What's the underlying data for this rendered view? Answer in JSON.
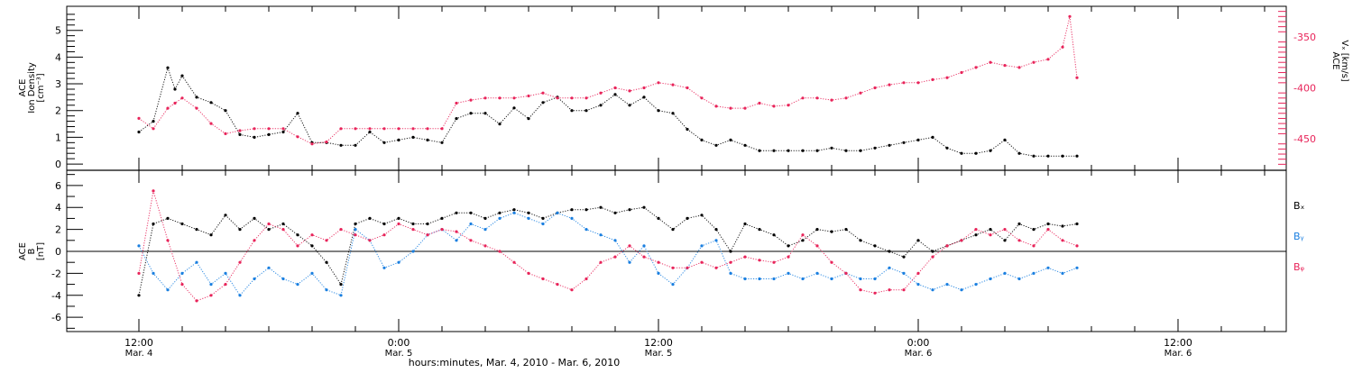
{
  "colors": {
    "black": "#000000",
    "red": "#e8245a",
    "blue": "#1a7fe0"
  },
  "chart_data": [
    {
      "type": "scatter",
      "panel": "top",
      "ylabel_left": [
        "ACE",
        "Ion Density",
        "[cm⁻³]"
      ],
      "ylabel_right": [
        "ACE",
        "Vₓ [km/s]"
      ],
      "ylim_left": [
        -0.2,
        5.9
      ],
      "ylim_right": [
        -480,
        -320
      ],
      "right_axis_reversed": true,
      "yticks_left": [
        0,
        1,
        2,
        3,
        4,
        5
      ],
      "yticks_right": [
        -350,
        -400,
        -450
      ],
      "series": [
        {
          "color": "black",
          "axis": "left",
          "x": [
            0,
            2,
            4,
            5,
            6,
            8,
            10,
            12,
            14,
            16,
            18,
            20,
            22,
            24,
            26,
            28,
            30,
            32,
            34,
            36,
            38,
            40,
            42,
            44,
            46,
            48,
            50,
            52,
            54,
            56,
            58,
            60,
            62,
            64,
            66,
            68,
            70,
            72,
            74,
            76,
            78,
            80,
            82,
            84,
            86,
            88,
            90,
            92,
            94,
            96,
            98,
            100,
            102,
            104,
            106,
            108,
            110,
            112,
            114,
            116,
            118,
            120,
            122,
            124,
            126,
            128,
            130
          ],
          "y": [
            1.2,
            1.6,
            3.6,
            2.8,
            3.3,
            2.5,
            2.3,
            2.0,
            1.1,
            1.0,
            1.1,
            1.2,
            1.9,
            0.8,
            0.8,
            0.7,
            0.7,
            1.2,
            0.8,
            0.9,
            1.0,
            0.9,
            0.8,
            1.7,
            1.9,
            1.9,
            1.5,
            2.1,
            1.7,
            2.3,
            2.5,
            2.0,
            2.0,
            2.2,
            2.6,
            2.2,
            2.5,
            2.0,
            1.9,
            1.3,
            0.9,
            0.7,
            0.9,
            0.7,
            0.5,
            0.5,
            0.5,
            0.5,
            0.5,
            0.6,
            0.5,
            0.5,
            0.6,
            0.7,
            0.8,
            0.9,
            1.0,
            0.6,
            0.4,
            0.4,
            0.5,
            0.9,
            0.4,
            0.3,
            0.3,
            0.3,
            0.3
          ]
        },
        {
          "color": "red",
          "axis": "right",
          "x": [
            0,
            2,
            4,
            5,
            6,
            8,
            10,
            12,
            14,
            16,
            18,
            20,
            22,
            24,
            26,
            28,
            30,
            32,
            34,
            36,
            38,
            40,
            42,
            44,
            46,
            48,
            50,
            52,
            54,
            56,
            58,
            60,
            62,
            64,
            66,
            68,
            70,
            72,
            74,
            76,
            78,
            80,
            82,
            84,
            86,
            88,
            90,
            92,
            94,
            96,
            98,
            100,
            102,
            104,
            106,
            108,
            110,
            112,
            114,
            116,
            118,
            120,
            122,
            124,
            126,
            128,
            129,
            130
          ],
          "y": [
            -430,
            -440,
            -420,
            -415,
            -410,
            -420,
            -435,
            -445,
            -442,
            -440,
            -440,
            -440,
            -448,
            -455,
            -453,
            -440,
            -440,
            -440,
            -440,
            -440,
            -440,
            -440,
            -440,
            -415,
            -412,
            -410,
            -410,
            -410,
            -408,
            -405,
            -410,
            -410,
            -410,
            -405,
            -400,
            -403,
            -400,
            -395,
            -397,
            -400,
            -410,
            -418,
            -420,
            -420,
            -415,
            -418,
            -417,
            -410,
            -410,
            -412,
            -410,
            -405,
            -400,
            -397,
            -395,
            -395,
            -392,
            -390,
            -385,
            -380,
            -375,
            -378,
            -380,
            -375,
            -372,
            -360,
            -330,
            -390
          ]
        }
      ]
    },
    {
      "type": "scatter",
      "panel": "bottom",
      "ylabel_left": [
        "ACE",
        "B",
        "[nT]"
      ],
      "ylim": [
        -7.3,
        7.3
      ],
      "yticks": [
        -6,
        -4,
        -2,
        0,
        2,
        4,
        6
      ],
      "zero_line": true,
      "legend_position": "right",
      "series": [
        {
          "name": "Bₓ",
          "color": "black",
          "x": [
            0,
            2,
            4,
            6,
            8,
            10,
            12,
            14,
            16,
            18,
            20,
            22,
            24,
            26,
            28,
            30,
            32,
            34,
            36,
            38,
            40,
            42,
            44,
            46,
            48,
            50,
            52,
            54,
            56,
            58,
            60,
            62,
            64,
            66,
            68,
            70,
            72,
            74,
            76,
            78,
            80,
            82,
            84,
            86,
            88,
            90,
            92,
            94,
            96,
            98,
            100,
            102,
            104,
            106,
            108,
            110,
            112,
            114,
            116,
            118,
            120,
            122,
            124,
            126,
            128,
            130
          ],
          "y": [
            -4.0,
            2.5,
            3.0,
            2.5,
            2.0,
            1.5,
            3.3,
            2.0,
            3.0,
            2.0,
            2.5,
            1.5,
            0.5,
            -1.0,
            -3.0,
            2.5,
            3.0,
            2.5,
            3.0,
            2.5,
            2.5,
            3.0,
            3.5,
            3.5,
            3.0,
            3.5,
            3.8,
            3.5,
            3.0,
            3.5,
            3.8,
            3.8,
            4.0,
            3.5,
            3.8,
            4.0,
            3.0,
            2.0,
            3.0,
            3.3,
            2.0,
            0.0,
            2.5,
            2.0,
            1.5,
            0.5,
            1.0,
            2.0,
            1.8,
            2.0,
            1.0,
            0.5,
            0.0,
            -0.5,
            1.0,
            0.0,
            0.5,
            1.0,
            1.5,
            2.0,
            1.0,
            2.5,
            2.0,
            2.5,
            2.3,
            2.5
          ]
        },
        {
          "name": "Bᵧ",
          "color": "blue",
          "x": [
            0,
            2,
            4,
            6,
            8,
            10,
            12,
            14,
            16,
            18,
            20,
            22,
            24,
            26,
            28,
            30,
            32,
            34,
            36,
            38,
            40,
            42,
            44,
            46,
            48,
            50,
            52,
            54,
            56,
            58,
            60,
            62,
            64,
            66,
            68,
            70,
            72,
            74,
            76,
            78,
            80,
            82,
            84,
            86,
            88,
            90,
            92,
            94,
            96,
            98,
            100,
            102,
            104,
            106,
            108,
            110,
            112,
            114,
            116,
            118,
            120,
            122,
            124,
            126,
            128,
            130
          ],
          "y": [
            0.5,
            -2.0,
            -3.5,
            -2.0,
            -1.0,
            -3.0,
            -2.0,
            -4.0,
            -2.5,
            -1.5,
            -2.5,
            -3.0,
            -2.0,
            -3.5,
            -4.0,
            2.0,
            1.0,
            -1.5,
            -1.0,
            0.0,
            1.5,
            2.0,
            1.0,
            2.5,
            2.0,
            3.0,
            3.5,
            3.0,
            2.5,
            3.5,
            3.0,
            2.0,
            1.5,
            1.0,
            -1.0,
            0.5,
            -2.0,
            -3.0,
            -1.5,
            0.5,
            1.0,
            -2.0,
            -2.5,
            -2.5,
            -2.5,
            -2.0,
            -2.5,
            -2.0,
            -2.5,
            -2.0,
            -2.5,
            -2.5,
            -1.5,
            -2.0,
            -3.0,
            -3.5,
            -3.0,
            -3.5,
            -3.0,
            -2.5,
            -2.0,
            -2.5,
            -2.0,
            -1.5,
            -2.0,
            -1.5
          ]
        },
        {
          "name": "Bᵩ",
          "color": "red",
          "x": [
            0,
            2,
            4,
            6,
            8,
            10,
            12,
            14,
            16,
            18,
            20,
            22,
            24,
            26,
            28,
            30,
            32,
            34,
            36,
            38,
            40,
            42,
            44,
            46,
            48,
            50,
            52,
            54,
            56,
            58,
            60,
            62,
            64,
            66,
            68,
            70,
            72,
            74,
            76,
            78,
            80,
            82,
            84,
            86,
            88,
            90,
            92,
            94,
            96,
            98,
            100,
            102,
            104,
            106,
            108,
            110,
            112,
            114,
            116,
            118,
            120,
            122,
            124,
            126,
            128,
            130
          ],
          "y": [
            -2.0,
            5.5,
            1.0,
            -3.0,
            -4.5,
            -4.0,
            -3.0,
            -1.0,
            1.0,
            2.5,
            2.0,
            0.5,
            1.5,
            1.0,
            2.0,
            1.5,
            1.0,
            1.5,
            2.5,
            2.0,
            1.5,
            2.0,
            1.8,
            1.0,
            0.5,
            0.0,
            -1.0,
            -2.0,
            -2.5,
            -3.0,
            -3.5,
            -2.5,
            -1.0,
            -0.5,
            0.5,
            -0.5,
            -1.0,
            -1.5,
            -1.5,
            -1.0,
            -1.5,
            -1.0,
            -0.5,
            -0.8,
            -1.0,
            -0.5,
            1.5,
            0.5,
            -1.0,
            -2.0,
            -3.5,
            -3.8,
            -3.5,
            -3.5,
            -2.0,
            -0.5,
            0.5,
            1.0,
            2.0,
            1.5,
            2.0,
            1.0,
            0.5,
            2.0,
            1.0,
            0.5
          ]
        }
      ]
    }
  ],
  "x_axis": {
    "xlim": [
      -10,
      159
    ],
    "major_ticks": [
      {
        "x": 0,
        "time": "12:00",
        "date": "Mar. 4"
      },
      {
        "x": 36,
        "time": "0:00",
        "date": "Mar. 5"
      },
      {
        "x": 72,
        "time": "12:00",
        "date": "Mar. 5"
      },
      {
        "x": 108,
        "time": "0:00",
        "date": "Mar. 6"
      },
      {
        "x": 144,
        "time": "12:00",
        "date": "Mar. 6"
      }
    ],
    "xlabel": "hours:minutes, Mar.  4, 2010 - Mar.  6, 2010"
  }
}
